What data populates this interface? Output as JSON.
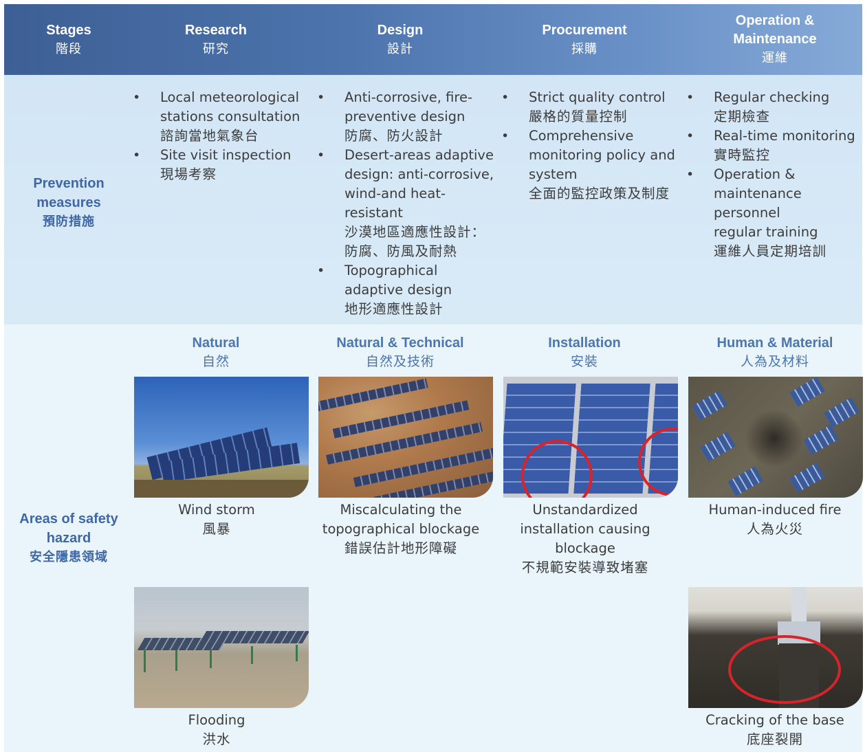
{
  "header": {
    "stages": {
      "en": "Stages",
      "zh": "階段"
    },
    "research": {
      "en": "Research",
      "zh": "研究"
    },
    "design": {
      "en": "Design",
      "zh": "設計"
    },
    "procurement": {
      "en": "Procurement",
      "zh": "採購"
    },
    "operation": {
      "en_line1": "Operation &",
      "en_line2": "Maintenance",
      "zh": "運維"
    }
  },
  "prevention": {
    "label": {
      "en_line1": "Prevention",
      "en_line2": "measures",
      "zh": "預防措施"
    },
    "research": [
      {
        "en_lines": [
          "Local meteorological",
          "stations consultation"
        ],
        "zh": "諮詢當地氣象台"
      },
      {
        "en_lines": [
          "Site visit inspection"
        ],
        "zh": "現場考察"
      }
    ],
    "design": [
      {
        "en_lines": [
          "Anti-corrosive, fire-",
          "preventive design"
        ],
        "zh": "防腐、防火設計"
      },
      {
        "en_lines": [
          "Desert-areas adaptive",
          "design: anti-corrosive,",
          "wind-and heat-",
          "resistant"
        ],
        "zh_lines": [
          "沙漠地區適應性設計：",
          "防腐、防風及耐熱"
        ]
      },
      {
        "en_lines": [
          "Topographical",
          "adaptive design"
        ],
        "zh": "地形適應性設計"
      }
    ],
    "procurement": [
      {
        "en_lines": [
          "Strict quality control"
        ],
        "zh": "嚴格的質量控制"
      },
      {
        "en_lines": [
          "Comprehensive",
          "monitoring policy and",
          "system"
        ],
        "zh": "全面的監控政策及制度"
      }
    ],
    "operation": [
      {
        "en_lines": [
          "Regular checking"
        ],
        "zh": "定期檢查"
      },
      {
        "en_lines": [
          "Real-time monitoring"
        ],
        "zh": "實時監控"
      },
      {
        "en_lines": [
          "Operation &",
          "maintenance personnel",
          "regular training"
        ],
        "zh": "運維人員定期培訓"
      }
    ],
    "bullet": "•"
  },
  "hazards": {
    "label": {
      "en_line1": "Areas of safety",
      "en_line2": "hazard",
      "zh": "安全隱患領域"
    },
    "categories": {
      "research": {
        "en": "Natural",
        "zh": "自然"
      },
      "design": {
        "en": "Natural & Technical",
        "zh": "自然及技術"
      },
      "procurement": {
        "en": "Installation",
        "zh": "安裝"
      },
      "operation": {
        "en": "Human & Material",
        "zh": "人為及材料"
      }
    },
    "captions": {
      "wind": {
        "en_lines": [
          "Wind storm"
        ],
        "zh": "風暴"
      },
      "topo": {
        "en_lines": [
          "Miscalculating the",
          "topographical blockage"
        ],
        "zh": "錯誤估計地形障礙"
      },
      "install": {
        "en_lines": [
          "Unstandardized",
          "installation causing",
          "blockage"
        ],
        "zh": "不規範安裝導致堵塞"
      },
      "fire": {
        "en_lines": [
          "Human-induced fire"
        ],
        "zh": "人為火災"
      },
      "flood": {
        "en_lines": [
          "Flooding"
        ],
        "zh": "洪水"
      },
      "crack": {
        "en_lines": [
          "Cracking of the base"
        ],
        "zh": "底座裂開"
      }
    }
  }
}
